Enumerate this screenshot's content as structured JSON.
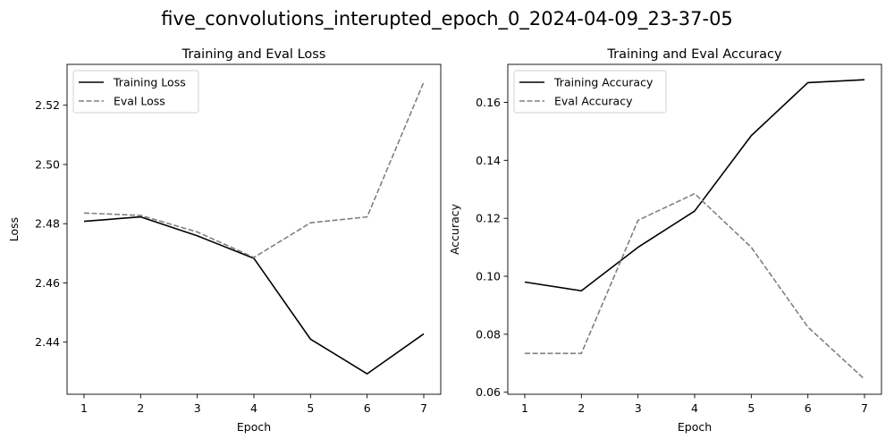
{
  "figure": {
    "suptitle": "five_convolutions_interupted_epoch_0_2024-04-09_23-37-05"
  },
  "chart_data": [
    {
      "type": "line",
      "title": "Training and Eval Loss",
      "xlabel": "Epoch",
      "ylabel": "Loss",
      "x": [
        1,
        2,
        3,
        4,
        5,
        6,
        7
      ],
      "xlim": [
        0.7,
        7.3
      ],
      "ylim": [
        2.4224,
        2.5338
      ],
      "xticks": [
        1,
        2,
        3,
        4,
        5,
        6,
        7
      ],
      "yticks": [
        2.44,
        2.46,
        2.48,
        2.5,
        2.52
      ],
      "ytick_labels": [
        "2.44",
        "2.46",
        "2.48",
        "2.50",
        "2.52"
      ],
      "legend_position": "upper-left",
      "grid": false,
      "series": [
        {
          "name": "Training Loss",
          "style": "solid",
          "color": "#000000",
          "values": [
            2.4808,
            2.4823,
            2.4759,
            2.4683,
            2.441,
            2.4293,
            2.4428
          ]
        },
        {
          "name": "Eval Loss",
          "style": "dashed",
          "color": "#808080",
          "values": [
            2.4836,
            2.4828,
            2.4772,
            2.4686,
            2.4803,
            2.4823,
            2.5278
          ]
        }
      ]
    },
    {
      "type": "line",
      "title": "Training and Eval Accuracy",
      "xlabel": "Epoch",
      "ylabel": "Accuracy",
      "x": [
        1,
        2,
        3,
        4,
        5,
        6,
        7
      ],
      "xlim": [
        0.7,
        7.3
      ],
      "ylim": [
        0.0593,
        0.1731
      ],
      "xticks": [
        1,
        2,
        3,
        4,
        5,
        6,
        7
      ],
      "yticks": [
        0.06,
        0.08,
        0.1,
        0.12,
        0.14,
        0.16
      ],
      "ytick_labels": [
        "0.06",
        "0.08",
        "0.10",
        "0.12",
        "0.14",
        "0.16"
      ],
      "legend_position": "upper-left",
      "grid": false,
      "series": [
        {
          "name": "Training Accuracy",
          "style": "solid",
          "color": "#000000",
          "values": [
            0.098,
            0.095,
            0.11,
            0.1225,
            0.1485,
            0.1668,
            0.1678
          ]
        },
        {
          "name": "Eval Accuracy",
          "style": "dashed",
          "color": "#808080",
          "values": [
            0.0734,
            0.0734,
            0.1193,
            0.1285,
            0.11,
            0.0825,
            0.0645
          ]
        }
      ]
    }
  ]
}
